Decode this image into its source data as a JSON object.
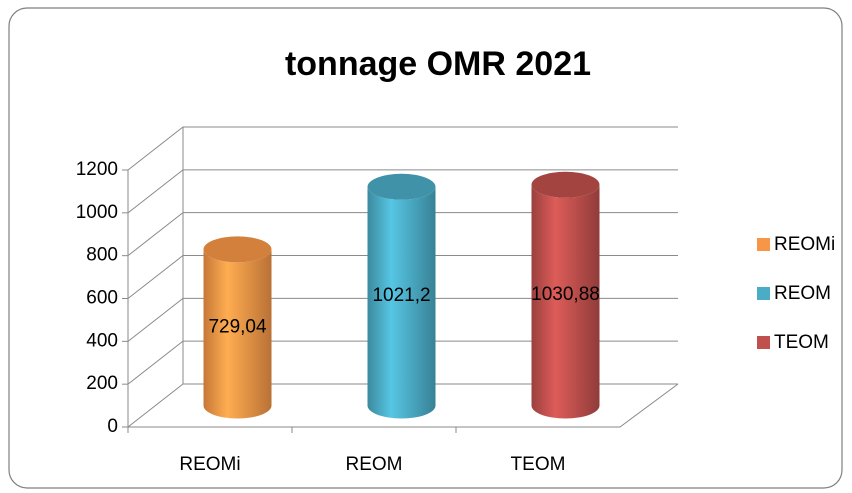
{
  "chart_data": {
    "type": "bar",
    "title": "tonnage OMR 2021",
    "categories": [
      "REOMi",
      "REOM",
      "TEOM"
    ],
    "values": [
      729.04,
      1021.2,
      1030.88
    ],
    "value_labels": [
      "729,04",
      "1021,2",
      "1030,88"
    ],
    "colors": [
      "#f79646",
      "#4bacc6",
      "#c0504d"
    ],
    "ylim": [
      0,
      1200
    ],
    "yticks": [
      0,
      200,
      400,
      600,
      800,
      1000,
      1200
    ],
    "grid": true,
    "legend": "right"
  }
}
